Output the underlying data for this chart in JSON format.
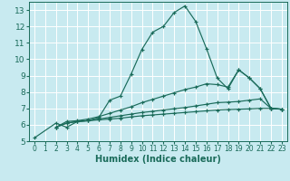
{
  "title": "",
  "xlabel": "Humidex (Indice chaleur)",
  "xlim": [
    -0.5,
    23.5
  ],
  "ylim": [
    5,
    13.5
  ],
  "yticks": [
    5,
    6,
    7,
    8,
    9,
    10,
    11,
    12,
    13
  ],
  "xticks": [
    0,
    1,
    2,
    3,
    4,
    5,
    6,
    7,
    8,
    9,
    10,
    11,
    12,
    13,
    14,
    15,
    16,
    17,
    18,
    19,
    20,
    21,
    22,
    23
  ],
  "background_color": "#c8eaf0",
  "grid_color": "#ffffff",
  "line_color": "#1a6b5a",
  "lines": [
    {
      "x": [
        0,
        2,
        3,
        4,
        5,
        6,
        7,
        8,
        9,
        10,
        11,
        12,
        13,
        14,
        15,
        16,
        17,
        18,
        19,
        20,
        21,
        22,
        23
      ],
      "y": [
        5.2,
        6.1,
        5.85,
        6.2,
        6.25,
        6.45,
        7.5,
        7.75,
        9.1,
        10.6,
        11.65,
        12.0,
        12.85,
        13.25,
        12.3,
        10.65,
        8.85,
        8.2,
        9.35,
        8.85,
        8.2,
        7.0,
        6.95
      ]
    },
    {
      "x": [
        2,
        3,
        4,
        5,
        6,
        7,
        8,
        9,
        10,
        11,
        12,
        13,
        14,
        15,
        16,
        17,
        18,
        19,
        20,
        21,
        22,
        23
      ],
      "y": [
        5.85,
        6.2,
        6.25,
        6.35,
        6.5,
        6.7,
        6.9,
        7.1,
        7.35,
        7.55,
        7.75,
        7.95,
        8.15,
        8.3,
        8.5,
        8.45,
        8.3,
        9.35,
        8.85,
        8.2,
        7.0,
        6.95
      ]
    },
    {
      "x": [
        2,
        3,
        4,
        5,
        6,
        7,
        8,
        9,
        10,
        11,
        12,
        13,
        14,
        15,
        16,
        17,
        18,
        19,
        20,
        21,
        22,
        23
      ],
      "y": [
        5.85,
        6.1,
        6.2,
        6.25,
        6.35,
        6.45,
        6.55,
        6.65,
        6.75,
        6.82,
        6.9,
        6.98,
        7.05,
        7.15,
        7.25,
        7.35,
        7.38,
        7.42,
        7.5,
        7.58,
        7.0,
        6.95
      ]
    },
    {
      "x": [
        2,
        3,
        4,
        5,
        6,
        7,
        8,
        9,
        10,
        11,
        12,
        13,
        14,
        15,
        16,
        17,
        18,
        19,
        20,
        21,
        22,
        23
      ],
      "y": [
        5.85,
        6.1,
        6.2,
        6.25,
        6.3,
        6.35,
        6.4,
        6.48,
        6.55,
        6.6,
        6.65,
        6.7,
        6.75,
        6.8,
        6.85,
        6.9,
        6.93,
        6.95,
        6.97,
        7.0,
        7.0,
        6.95
      ]
    }
  ]
}
